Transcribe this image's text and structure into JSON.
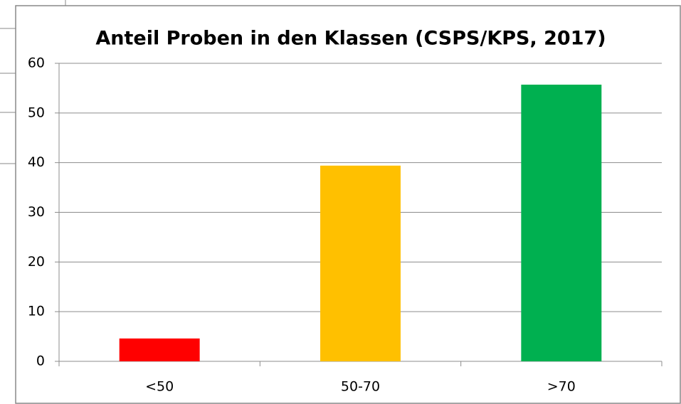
{
  "chart_data": {
    "type": "bar",
    "title": "Anteil Proben in den Klassen (CSPS/KPS, 2017)",
    "categories": [
      "<50",
      "50-70",
      ">70"
    ],
    "values": [
      4.6,
      39.4,
      55.7
    ],
    "colors": [
      "#ff0000",
      "#ffc000",
      "#00b050"
    ],
    "ylim": [
      0,
      60
    ],
    "yticks": [
      0,
      10,
      20,
      30,
      40,
      50,
      60
    ],
    "grid": true
  }
}
